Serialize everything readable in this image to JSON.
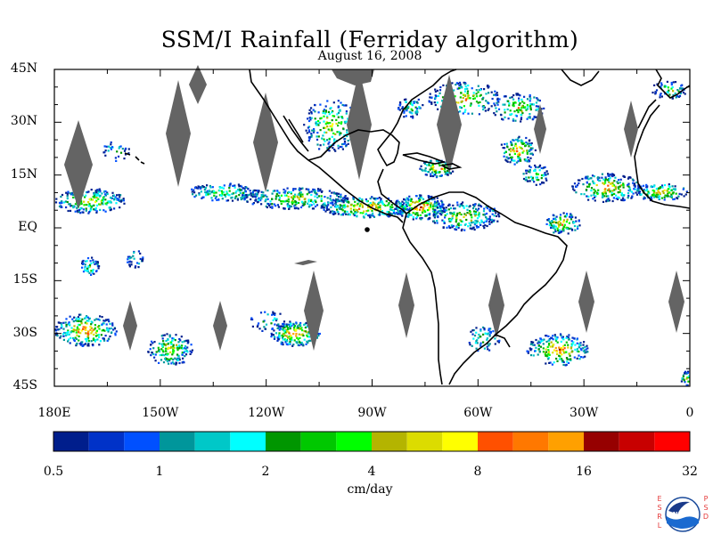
{
  "title": "SSM/I Rainfall (Ferriday algorithm)",
  "subtitle": "August 16, 2008",
  "map": {
    "lat_labels": [
      "45N",
      "30N",
      "15N",
      "EQ",
      "15S",
      "30S",
      "45S"
    ],
    "lon_labels": [
      "180E",
      "150W",
      "120W",
      "90W",
      "60W",
      "30W",
      "0"
    ],
    "lat_range": [
      -45,
      45
    ],
    "lon_range": [
      -180,
      0
    ],
    "missing_swath_color": "#646464",
    "coastline_color": "#000000"
  },
  "colorbar": {
    "colors": [
      "#001e8c",
      "#0032c8",
      "#0050ff",
      "#00969b",
      "#00c8c8",
      "#00ffff",
      "#009600",
      "#00c800",
      "#00ff00",
      "#b4b400",
      "#dcdc00",
      "#ffff00",
      "#ff5000",
      "#ff7800",
      "#ffa000",
      "#960000",
      "#c80000",
      "#ff0000"
    ],
    "tick_labels": [
      "0.5",
      "1",
      "2",
      "4",
      "8",
      "16",
      "32"
    ],
    "units": "cm/day"
  },
  "logo": {
    "left_letters": [
      "E",
      "S",
      "R",
      "L"
    ],
    "center_text": "NOAA",
    "right_letters": [
      "P",
      "S",
      "D"
    ]
  }
}
